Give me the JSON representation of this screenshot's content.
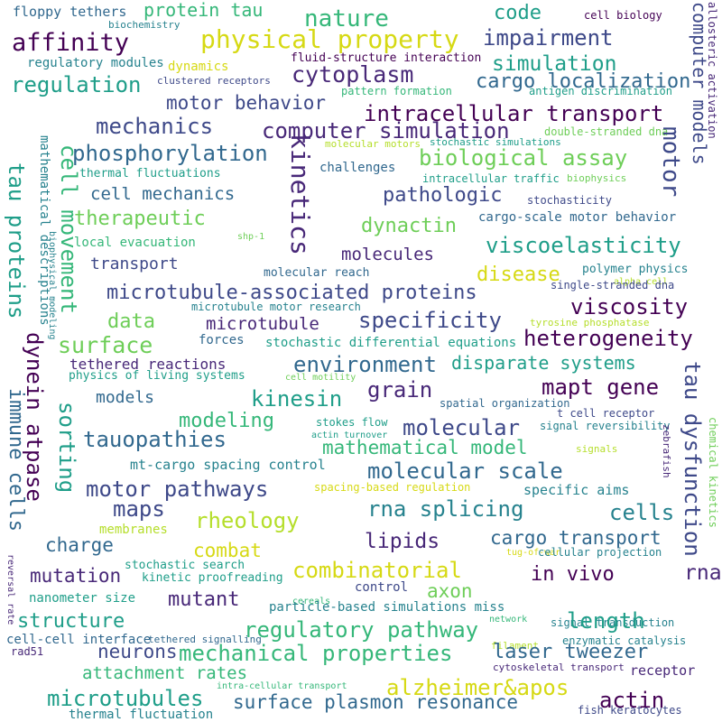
{
  "palette": {
    "dark_purple": "#440154",
    "indigo": "#482878",
    "slate_blue": "#3e4989",
    "steel_blue": "#31688e",
    "teal_blue": "#26828e",
    "teal": "#1f9e89",
    "sea_green": "#35b779",
    "green": "#6ece58",
    "lime": "#b5de2b",
    "yellow": "#d6d914"
  },
  "words": [
    "floppy tethers",
    "protein tau",
    "nature",
    "code",
    "cell biology",
    "computer models",
    "biochemistry",
    "affinity",
    "physical property",
    "impairment",
    "allosteric activation",
    "regulatory modules",
    "dynamics",
    "fluid-structure interaction",
    "simulation",
    "regulation",
    "clustered receptors",
    "cytoplasm",
    "cargo localization",
    "pattern formation",
    "antigen discrimination",
    "motor behavior",
    "intracellular transport",
    "mechanics",
    "computer simulation",
    "double-stranded dna",
    "molecular motors",
    "stochastic simulations",
    "phosphorylation",
    "kinetics",
    "biological assay",
    "thermal fluctuations",
    "challenges",
    "intracellular traffic",
    "biophysics",
    "cell mechanics",
    "motor",
    "pathologic",
    "stochasticity",
    "mathematical descriptions",
    "biophysical modeling",
    "therapeutic",
    "cargo-scale motor behavior",
    "tau proteins",
    "cell movement",
    "dynactin",
    "shp-1",
    "local evacuation",
    "viscoelasticity",
    "molecules",
    "transport",
    "disease",
    "alpha cell",
    "polymer physics",
    "molecular reach",
    "single-stranded dna",
    "microtubule-associated proteins",
    "microtubule motor research",
    "viscosity",
    "data",
    "specificity",
    "microtubule",
    "tyrosine phosphatase",
    "heterogeneity",
    "surface",
    "forces",
    "stochastic differential equations",
    "dynein atpase",
    "immune cells",
    "sorting",
    "environment",
    "disparate systems",
    "tethered reactions",
    "physics of living systems",
    "cell motility",
    "grain",
    "mapt gene",
    "tau dysfunction",
    "models",
    "kinesin",
    "spatial organization",
    "t cell receptor",
    "modeling",
    "stokes flow",
    "actin turnover",
    "signal reversibility",
    "molecular",
    "tauopathies",
    "mathematical model",
    "signals",
    "zebrafish",
    "chemical kinetics",
    "mt-cargo spacing control",
    "molecular scale",
    "motor pathways",
    "spacing-based regulation",
    "specific aims",
    "maps",
    "rna splicing",
    "cells",
    "membranes",
    "rheology",
    "charge",
    "combat",
    "lipids",
    "cargo transport",
    "tug-of-war",
    "cellular projection",
    "stochastic search",
    "combinatorial",
    "mutation",
    "kinetic proofreading",
    "in vivo",
    "rna",
    "mutant",
    "nanometer size",
    "axon",
    "control",
    "cereals",
    "network",
    "signal transduction",
    "reversal rate",
    "structure",
    "particle-based simulations miss",
    "length",
    "regulatory pathway",
    "tethered signalling",
    "filament",
    "cell-cell interface",
    "neurons",
    "mechanical properties",
    "laser tweezer",
    "enzymatic catalysis",
    "rad51",
    "attachment rates",
    "alzheimer&apos",
    "receptor",
    "microtubules",
    "intra-cellular transport",
    "cytoskeletal transport",
    "surface plasmon resonance",
    "actin",
    "fish keratocytes",
    "thermal fluctuation"
  ]
}
